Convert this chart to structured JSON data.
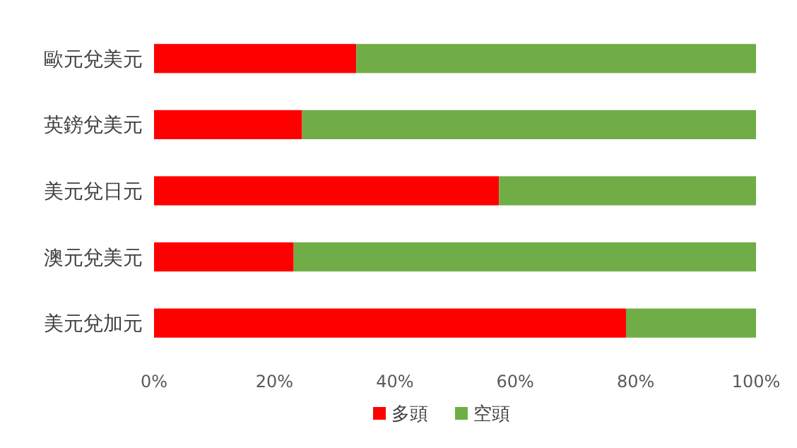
{
  "chart_data": {
    "type": "bar",
    "orientation": "horizontal",
    "stacked": true,
    "categories": [
      "歐元兌美元",
      "英鎊兌美元",
      "美元兌日元",
      "澳元兌美元",
      "美元兌加元"
    ],
    "series": [
      {
        "name": "多頭",
        "color": "#ff0000",
        "values": [
          33.6,
          24.6,
          57.3,
          23.2,
          78.4
        ]
      },
      {
        "name": "空頭",
        "color": "#70ad47",
        "values": [
          66.4,
          75.4,
          42.7,
          76.8,
          21.6
        ]
      }
    ],
    "xlim": [
      0,
      100
    ],
    "xticks": [
      {
        "value": 0,
        "label": "0%"
      },
      {
        "value": 20,
        "label": "20%"
      },
      {
        "value": 40,
        "label": "40%"
      },
      {
        "value": 60,
        "label": "60%"
      },
      {
        "value": 80,
        "label": "80%"
      },
      {
        "value": 100,
        "label": "100%"
      }
    ],
    "legend": "bottom"
  }
}
